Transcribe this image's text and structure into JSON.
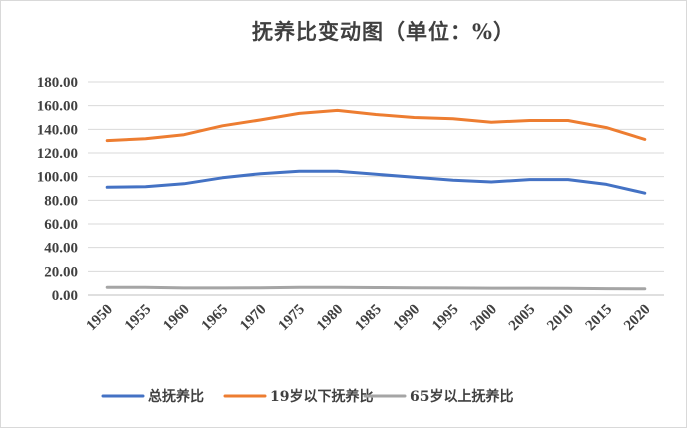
{
  "chart_data": {
    "type": "line",
    "title": "抚养比变动图（单位：%）",
    "xlabel": "",
    "ylabel": "",
    "categories": [
      "1950",
      "1955",
      "1960",
      "1965",
      "1970",
      "1975",
      "1980",
      "1985",
      "1990",
      "1995",
      "2000",
      "2005",
      "2010",
      "2015",
      "2020"
    ],
    "ylim": [
      0,
      180
    ],
    "yticks": [
      "0.00",
      "20.00",
      "40.00",
      "60.00",
      "80.00",
      "100.00",
      "120.00",
      "140.00",
      "160.00",
      "180.00"
    ],
    "grid": true,
    "legend_position": "bottom",
    "series": [
      {
        "name": "总抚养比",
        "color": "#4472c4",
        "values": [
          91.0,
          91.5,
          94.0,
          99.0,
          102.5,
          104.5,
          104.5,
          102.0,
          99.5,
          97.0,
          95.5,
          97.5,
          97.5,
          93.5,
          86.0
        ]
      },
      {
        "name": "19岁以下抚养比",
        "color": "#ed7d31",
        "values": [
          130.5,
          132.0,
          135.5,
          143.0,
          148.0,
          153.5,
          156.0,
          152.5,
          150.0,
          149.0,
          146.0,
          147.5,
          147.5,
          141.5,
          131.5
        ]
      },
      {
        "name": "65岁以上抚养比",
        "color": "#a5a5a5",
        "values": [
          6.5,
          6.5,
          6.0,
          6.0,
          6.2,
          6.5,
          6.5,
          6.3,
          6.2,
          6.0,
          5.8,
          5.8,
          5.7,
          5.4,
          5.2
        ]
      }
    ]
  }
}
